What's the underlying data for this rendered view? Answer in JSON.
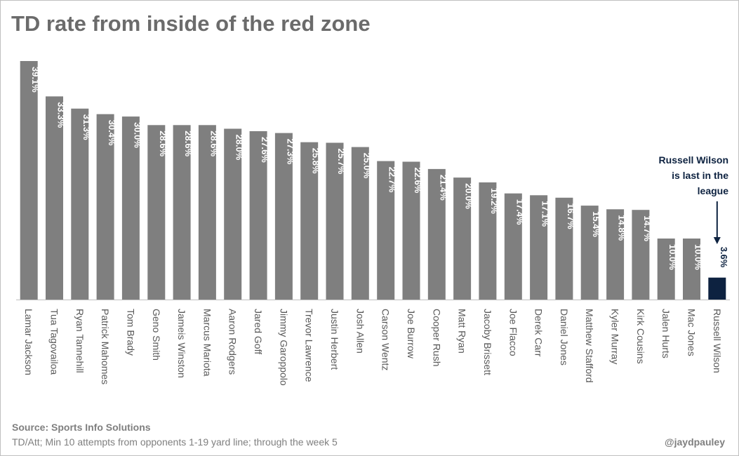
{
  "title": "TD rate from inside of the red zone",
  "footer": {
    "source": "Source: Sports Info Solutions",
    "note": "TD/Att; Min 10 attempts from opponents 1-19 yard line; through the week 5",
    "handle": "@jaydpauley"
  },
  "annotation": {
    "lines": [
      "Russell Wilson",
      "is last in the",
      "league"
    ],
    "target": "Russell Wilson"
  },
  "colors": {
    "bar": "#7f7f7f",
    "highlight": "#0d2240",
    "label_on_bar": "#ffffff",
    "label_above": "#0d2240",
    "axis_text": "#595959"
  },
  "chart_data": {
    "type": "bar",
    "categories": [
      "Lamar Jackson",
      "Tua Tagovailoa",
      "Ryan Tannehill",
      "Patrick Mahomes",
      "Tom Brady",
      "Geno Smith",
      "Jameis Winston",
      "Marcus Mariota",
      "Aaron Rodgers",
      "Jared Goff",
      "Jimmy Garoppolo",
      "Trevor Lawrence",
      "Justin Herbert",
      "Josh Allen",
      "Carson Wentz",
      "Joe Burrow",
      "Cooper Rush",
      "Matt Ryan",
      "Jacoby Brissett",
      "Joe Flacco",
      "Derek Carr",
      "Daniel Jones",
      "Matthew Stafford",
      "Kyler Murray",
      "Kirk Cousins",
      "Jalen Hurts",
      "Mac Jones",
      "Russell Wilson"
    ],
    "values": [
      39.1,
      33.3,
      31.3,
      30.4,
      30.0,
      28.6,
      28.6,
      28.6,
      28.0,
      27.6,
      27.3,
      25.8,
      25.7,
      25.0,
      22.7,
      22.6,
      21.4,
      20.0,
      19.2,
      17.4,
      17.1,
      16.7,
      15.4,
      14.8,
      14.7,
      10.0,
      10.0,
      3.6
    ],
    "labels": [
      "39.1%",
      "33.3%",
      "31.3%",
      "30.4%",
      "30.0%",
      "28.6%",
      "28.6%",
      "28.6%",
      "28.0%",
      "27.6%",
      "27.3%",
      "25.8%",
      "25.7%",
      "25.0%",
      "22.7%",
      "22.6%",
      "21.4%",
      "20.0%",
      "19.2%",
      "17.4%",
      "17.1%",
      "16.7%",
      "15.4%",
      "14.8%",
      "14.7%",
      "10.0%",
      "10.0%",
      "3.6%"
    ],
    "highlight_index": 27,
    "ylim": [
      0,
      39.1
    ],
    "grid": false,
    "title": "TD rate from inside of the red zone",
    "xlabel": "",
    "ylabel": ""
  }
}
